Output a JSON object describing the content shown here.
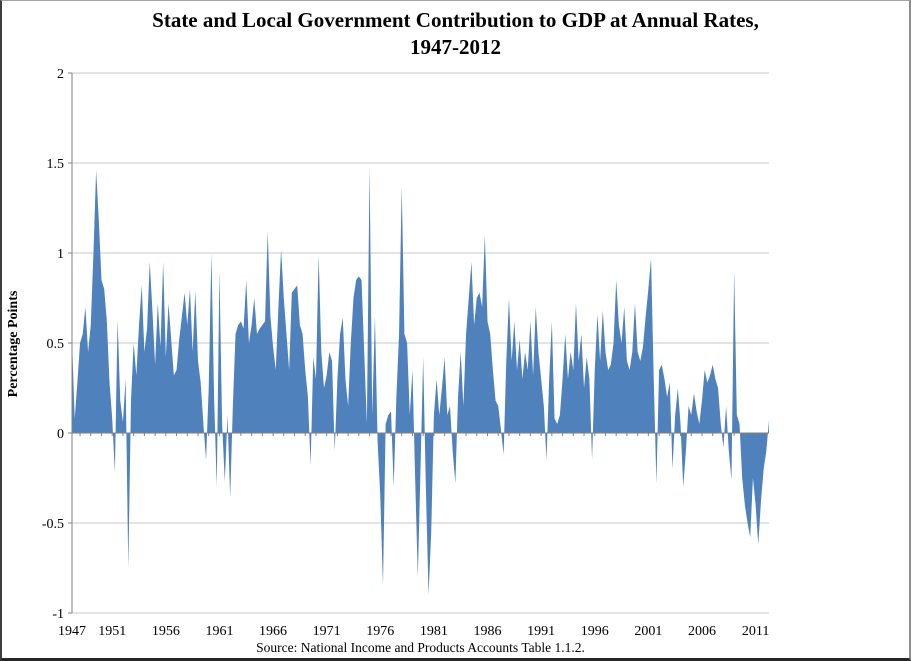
{
  "title_line1": "State and Local Government Contribution to GDP at Annual Rates,",
  "title_line2": "1947-2012",
  "y_axis_title": "Percentage Points",
  "source_note": "Source: National Income and Products Accounts Table 1.1.2.",
  "colors": {
    "area_fill": "#4F81BD",
    "gridline": "#C9C9C9",
    "axis_line": "#808080",
    "text": "#000000",
    "background": "#FFFFFF"
  },
  "chart_data": {
    "type": "area",
    "title": "State and Local Government Contribution to GDP at Annual Rates, 1947-2012",
    "xlabel": "",
    "ylabel": "Percentage Points",
    "ylim": [
      -1,
      2
    ],
    "grid": true,
    "legend": "none",
    "frequency": "quarterly",
    "start_period": "1947Q2",
    "end_period": "2012Q2",
    "y_ticks": [
      {
        "value": 2,
        "label": "2"
      },
      {
        "value": 1.5,
        "label": "1.5"
      },
      {
        "value": 1,
        "label": "1"
      },
      {
        "value": 0.5,
        "label": "0.5"
      },
      {
        "value": 0,
        "label": "0"
      },
      {
        "value": -0.5,
        "label": "-0.5"
      },
      {
        "value": -1,
        "label": "-1"
      }
    ],
    "x_tick_years": [
      1947,
      1951,
      1956,
      1961,
      1966,
      1971,
      1976,
      1981,
      1986,
      1991,
      1996,
      2001,
      2006,
      2011
    ],
    "values": [
      0.52,
      0.08,
      0.28,
      0.5,
      0.55,
      0.7,
      0.45,
      0.6,
      1.0,
      1.46,
      1.18,
      0.85,
      0.8,
      0.62,
      0.28,
      0.08,
      -0.22,
      0.63,
      0.18,
      0.06,
      0.3,
      -0.75,
      0.18,
      0.5,
      0.32,
      0.6,
      0.82,
      0.45,
      0.58,
      0.95,
      0.68,
      0.38,
      0.72,
      0.48,
      0.95,
      0.42,
      0.72,
      0.52,
      0.32,
      0.35,
      0.52,
      0.65,
      0.78,
      0.6,
      0.8,
      0.45,
      0.79,
      0.4,
      0.28,
      0.05,
      -0.15,
      0.25,
      1.0,
      0.2,
      -0.3,
      0.9,
      0.05,
      -0.27,
      0.1,
      -0.36,
      0.15,
      0.55,
      0.6,
      0.62,
      0.58,
      0.85,
      0.5,
      0.6,
      0.75,
      0.55,
      0.58,
      0.6,
      0.62,
      1.12,
      0.65,
      0.48,
      0.35,
      0.7,
      1.02,
      0.75,
      0.55,
      0.35,
      0.78,
      0.8,
      0.82,
      0.6,
      0.55,
      0.35,
      0.2,
      -0.18,
      0.42,
      0.3,
      0.99,
      0.45,
      0.25,
      0.32,
      0.45,
      0.4,
      -0.1,
      0.3,
      0.55,
      0.64,
      0.3,
      0.15,
      0.5,
      0.75,
      0.85,
      0.87,
      0.85,
      0.45,
      0.05,
      1.48,
      0.1,
      0.65,
      -0.05,
      -0.35,
      -0.85,
      0.05,
      0.1,
      0.12,
      -0.3,
      0.2,
      0.55,
      1.37,
      0.55,
      0.5,
      0.1,
      0.35,
      -0.25,
      -0.8,
      -0.2,
      0.42,
      -0.3,
      -0.9,
      -0.55,
      0.1,
      0.3,
      0.1,
      0.25,
      0.42,
      0.1,
      0.15,
      -0.1,
      -0.28,
      0.2,
      0.45,
      0.15,
      0.55,
      0.75,
      0.95,
      0.6,
      0.75,
      0.78,
      0.7,
      1.1,
      0.62,
      0.55,
      0.35,
      0.18,
      0.15,
      0.02,
      -0.12,
      0.4,
      0.75,
      0.4,
      0.62,
      0.35,
      0.52,
      0.3,
      0.45,
      0.35,
      0.62,
      0.32,
      0.7,
      0.45,
      0.3,
      0.15,
      -0.15,
      0.3,
      0.62,
      0.08,
      0.05,
      0.1,
      0.3,
      0.55,
      0.3,
      0.45,
      0.35,
      0.72,
      0.4,
      0.55,
      0.25,
      0.42,
      0.3,
      -0.15,
      0.35,
      0.66,
      0.4,
      0.68,
      0.45,
      0.35,
      0.38,
      0.5,
      0.85,
      0.6,
      0.5,
      0.7,
      0.4,
      0.35,
      0.45,
      0.72,
      0.45,
      0.4,
      0.48,
      0.65,
      0.8,
      0.97,
      0.3,
      -0.28,
      0.35,
      0.38,
      0.3,
      0.2,
      0.28,
      -0.2,
      0.1,
      0.25,
      0.05,
      -0.3,
      -0.1,
      0.15,
      0.1,
      0.22,
      0.12,
      0.05,
      0.18,
      0.35,
      0.28,
      0.32,
      0.38,
      0.3,
      0.25,
      0.05,
      -0.08,
      0.15,
      -0.1,
      -0.26,
      0.9,
      0.1,
      0.05,
      -0.25,
      -0.4,
      -0.5,
      -0.58,
      -0.25,
      -0.4,
      -0.62,
      -0.38,
      -0.2,
      -0.1,
      0.07
    ]
  }
}
